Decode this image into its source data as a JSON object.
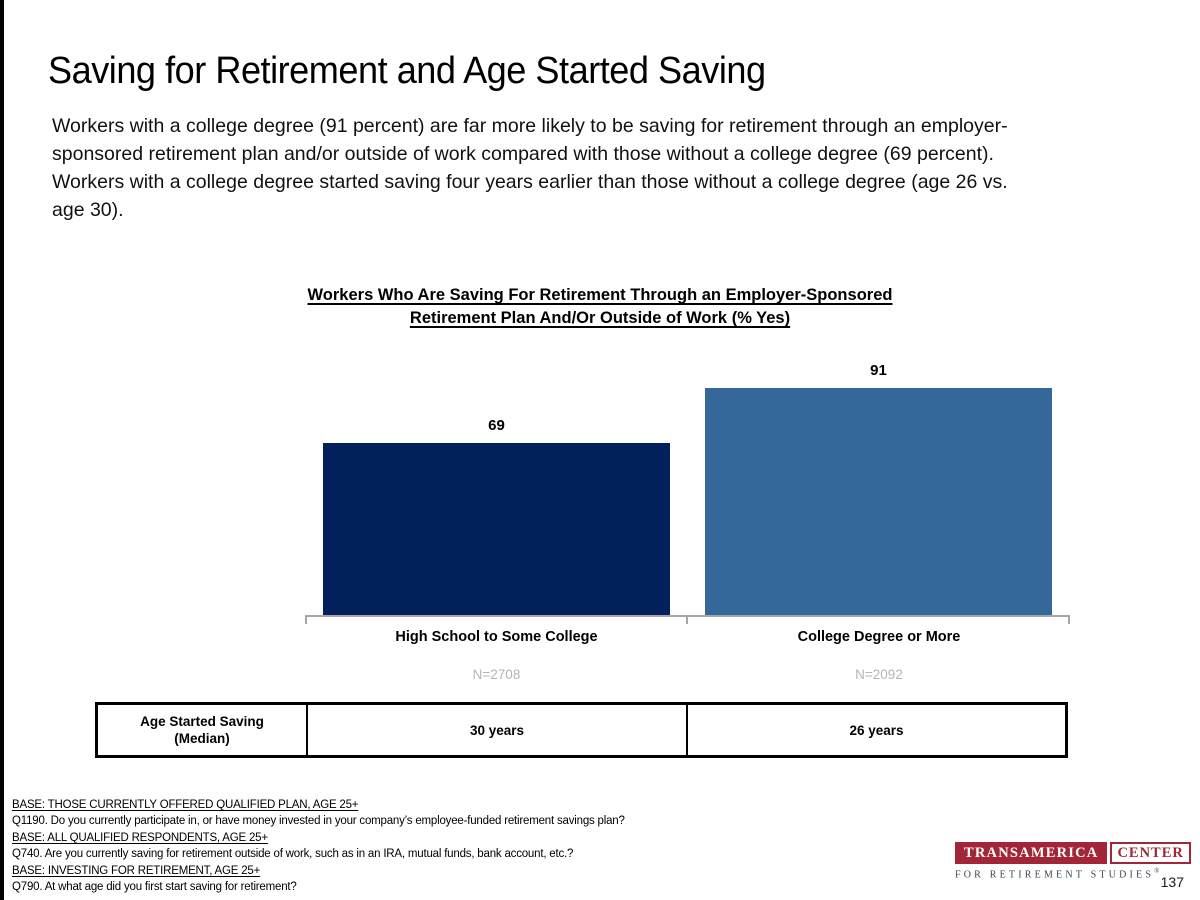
{
  "page": {
    "title": "Saving for Retirement and Age Started Saving",
    "intro": "Workers with a college degree (91 percent) are far more likely to be saving for retirement through an employer-\nsponsored retirement plan and/or outside of work compared with those without a college degree (69 percent).\nWorkers with a college degree started saving four years earlier than those without a college degree (age 26 vs.\nage 30).",
    "page_number": "137"
  },
  "chart_data": {
    "type": "bar",
    "title": "Workers Who Are Saving For Retirement Through an Employer-Sponsored\nRetirement Plan And/Or Outside of Work (% Yes)",
    "categories": [
      "High School to Some College",
      "College Degree or More"
    ],
    "values": [
      69,
      91
    ],
    "sample_sizes": [
      "N=2708",
      "N=2092"
    ],
    "bar_colors": [
      "#02215C",
      "#34689A"
    ],
    "ylabel": "% Yes",
    "ylim": [
      0,
      100
    ],
    "grid": false,
    "legend": false,
    "axis_color": "#A6A6A6",
    "sample_size_color": "#B5B5B5"
  },
  "age_table": {
    "row_header": "Age Started Saving\n(Median)",
    "values": [
      "30 years",
      "26 years"
    ]
  },
  "footnotes": [
    "BASE: THOSE CURRENTLY OFFERED QUALIFIED PLAN, AGE 25+",
    "Q1190. Do you currently participate in, or have money invested in your company’s employee-funded retirement savings plan?",
    "BASE: ALL QUALIFIED RESPONDENTS, AGE 25+",
    "Q740. Are you currently saving for retirement outside of work, such as in an IRA, mutual funds, bank account, etc.?",
    "BASE: INVESTING FOR RETIREMENT, AGE 25+",
    "Q790. At what age did you first start saving for retirement?"
  ],
  "logo": {
    "primary": "TRANSAMERICA",
    "secondary": "CENTER",
    "tagline": "FOR RETIREMENT STUDIES",
    "registered": "®",
    "brand_color": "#A32638"
  }
}
